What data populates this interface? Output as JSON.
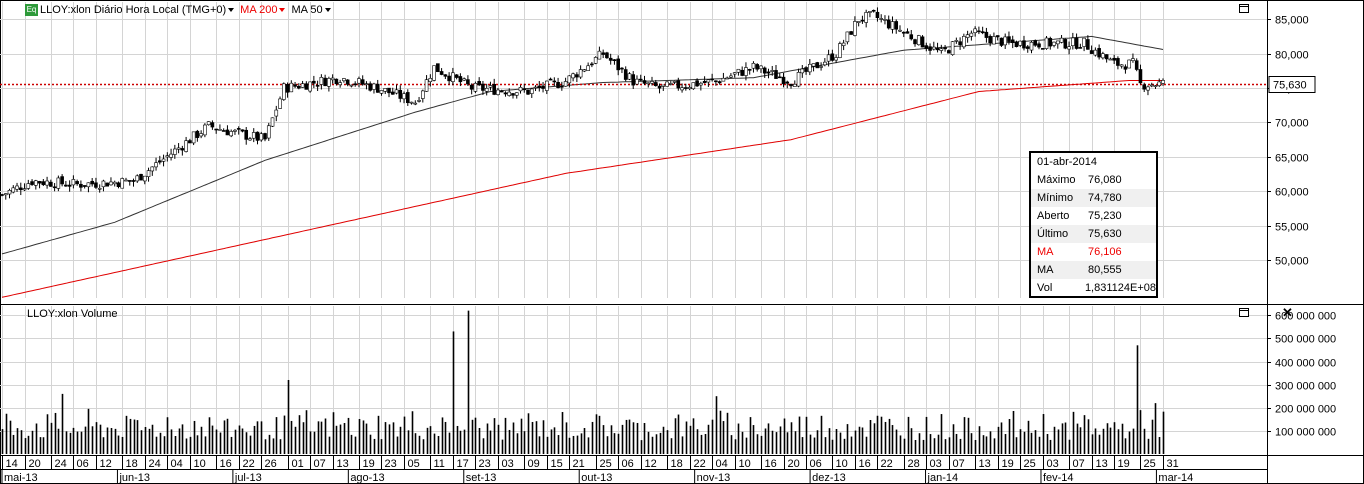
{
  "header": {
    "badge": "Eq",
    "title": "LLOY:xlon Diário Hora Local (TMG+0)",
    "ma200_label": "MA 200",
    "ma50_label": "MA 50"
  },
  "volume_panel": {
    "title": "LLOY:xlon Volume"
  },
  "info_box": {
    "date": "01-abr-2014",
    "rows": [
      {
        "label": "Máximo",
        "value": "76,080"
      },
      {
        "label": "Mínimo",
        "value": "74,780"
      },
      {
        "label": "Aberto",
        "value": "75,230"
      },
      {
        "label": "Último",
        "value": "75,630"
      },
      {
        "label": "MA",
        "value": "76,106"
      },
      {
        "label": "MA",
        "value": "80,555"
      },
      {
        "label": "Vol",
        "value": "1,831124E+08"
      }
    ]
  },
  "colors": {
    "ma200": "#e00000",
    "ma50": "#333333",
    "last_price_line": "#cc0000",
    "candle_up": "#ffffff",
    "candle_down": "#000000",
    "grid": "#d4d4d4"
  },
  "chart_data": [
    {
      "type": "candlestick",
      "title": "LLOY:xlon Diário Hora Local (TMG+0)",
      "y_ticks": [
        "85,000",
        "80,000",
        "75,000",
        "70,000",
        "65,000",
        "60,000",
        "55,000",
        "50,000"
      ],
      "y_tick_values": [
        85,
        80,
        75,
        70,
        65,
        60,
        55,
        50
      ],
      "ylim": [
        44.5,
        87.5
      ],
      "last_price": 75.63,
      "last_price_label": "75,630",
      "x_day_labels": [
        "14",
        "20",
        "24",
        "06",
        "12",
        "18",
        "24",
        "04",
        "10",
        "16",
        "22",
        "26",
        "01",
        "07",
        "13",
        "19",
        "23",
        "05",
        "11",
        "17",
        "23",
        "03",
        "09",
        "15",
        "21",
        "25",
        "06",
        "12",
        "18",
        "22",
        "04",
        "10",
        "16",
        "20",
        "06",
        "10",
        "16",
        "22",
        "28",
        "03",
        "07",
        "13",
        "19",
        "25",
        "03",
        "07",
        "13",
        "19",
        "25",
        "31"
      ],
      "x_month_labels": [
        "mai-13",
        "jun-13",
        "jul-13",
        "ago-13",
        "set-13",
        "out-13",
        "nov-13",
        "dez-13",
        "jan-14",
        "fev-14",
        "mar-14"
      ],
      "close_anchors": [
        {
          "i": 0,
          "v": 59.5
        },
        {
          "i": 8,
          "v": 61.5
        },
        {
          "i": 20,
          "v": 61
        },
        {
          "i": 35,
          "v": 61.5
        },
        {
          "i": 55,
          "v": 69.5
        },
        {
          "i": 62,
          "v": 68.5
        },
        {
          "i": 70,
          "v": 67.5
        },
        {
          "i": 75,
          "v": 75
        },
        {
          "i": 90,
          "v": 76.5
        },
        {
          "i": 100,
          "v": 75
        },
        {
          "i": 110,
          "v": 73
        },
        {
          "i": 115,
          "v": 78
        },
        {
          "i": 125,
          "v": 75
        },
        {
          "i": 140,
          "v": 74.5
        },
        {
          "i": 150,
          "v": 76
        },
        {
          "i": 160,
          "v": 80
        },
        {
          "i": 168,
          "v": 76
        },
        {
          "i": 175,
          "v": 75
        },
        {
          "i": 190,
          "v": 76
        },
        {
          "i": 200,
          "v": 78
        },
        {
          "i": 210,
          "v": 76
        },
        {
          "i": 222,
          "v": 80
        },
        {
          "i": 228,
          "v": 85
        },
        {
          "i": 232,
          "v": 85.5
        },
        {
          "i": 242,
          "v": 82.5
        },
        {
          "i": 250,
          "v": 80
        },
        {
          "i": 258,
          "v": 83
        },
        {
          "i": 268,
          "v": 81.5
        },
        {
          "i": 280,
          "v": 81.5
        },
        {
          "i": 288,
          "v": 81.5
        },
        {
          "i": 296,
          "v": 78.5
        },
        {
          "i": 301,
          "v": 78.5
        },
        {
          "i": 303,
          "v": 75.5
        },
        {
          "i": 308,
          "v": 75.63
        }
      ],
      "ma50_anchors": [
        {
          "i": 0,
          "v": 50.9
        },
        {
          "i": 30,
          "v": 55.5
        },
        {
          "i": 70,
          "v": 64.5
        },
        {
          "i": 110,
          "v": 71.5
        },
        {
          "i": 130,
          "v": 74.5
        },
        {
          "i": 160,
          "v": 75.8
        },
        {
          "i": 200,
          "v": 76.5
        },
        {
          "i": 240,
          "v": 80.5
        },
        {
          "i": 290,
          "v": 82.5
        },
        {
          "i": 309,
          "v": 80.6
        }
      ],
      "ma200_anchors": [
        {
          "i": 0,
          "v": 44.6
        },
        {
          "i": 75,
          "v": 53.6
        },
        {
          "i": 150,
          "v": 62.6
        },
        {
          "i": 210,
          "v": 67.5
        },
        {
          "i": 260,
          "v": 74.5
        },
        {
          "i": 300,
          "v": 76.1
        },
        {
          "i": 309,
          "v": 76.1
        }
      ]
    },
    {
      "type": "bar",
      "title": "LLOY:xlon Volume",
      "y_ticks": [
        "600 000 000",
        "500 000 000",
        "400 000 000",
        "300 000 000",
        "200 000 000",
        "100 000 000"
      ],
      "y_tick_values": [
        600000000,
        500000000,
        400000000,
        300000000,
        200000000,
        100000000
      ],
      "ylim": [
        0,
        640000000
      ],
      "spikes": [
        {
          "i": 16,
          "v": 260000000
        },
        {
          "i": 76,
          "v": 320000000
        },
        {
          "i": 120,
          "v": 530000000
        },
        {
          "i": 124,
          "v": 620000000
        },
        {
          "i": 190,
          "v": 250000000
        },
        {
          "i": 302,
          "v": 470000000
        },
        {
          "i": 307,
          "v": 220000000
        },
        {
          "i": 309,
          "v": 183112400
        }
      ],
      "base_range": [
        60000000,
        200000000
      ]
    }
  ]
}
